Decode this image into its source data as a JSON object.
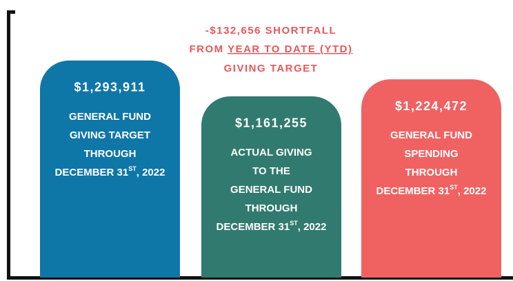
{
  "chart_data": {
    "type": "bar",
    "annotation": [
      "-$132,656 SHORTFALL",
      "FROM",
      "YEAR TO DATE (YTD)",
      "GIVING TARGET"
    ],
    "values": [
      1293911,
      1161255,
      1224472
    ],
    "value_labels": [
      "$1,293,911",
      "$1,161,255",
      "$1,224,472"
    ],
    "descriptions": [
      [
        "GENERAL FUND",
        "GIVING TARGET",
        "THROUGH"
      ],
      [
        "ACTUAL GIVING",
        "TO THE",
        "GENERAL FUND",
        "THROUGH"
      ],
      [
        "GENERAL FUND",
        "SPENDING",
        "THROUGH"
      ]
    ],
    "date_line": {
      "before": "DECEMBER 31",
      "sup": "ST",
      "after": ", 2022"
    },
    "colors": [
      "#0f76a8",
      "#317a6f",
      "#f06262"
    ],
    "ylim": [
      490000,
      1480000
    ]
  }
}
